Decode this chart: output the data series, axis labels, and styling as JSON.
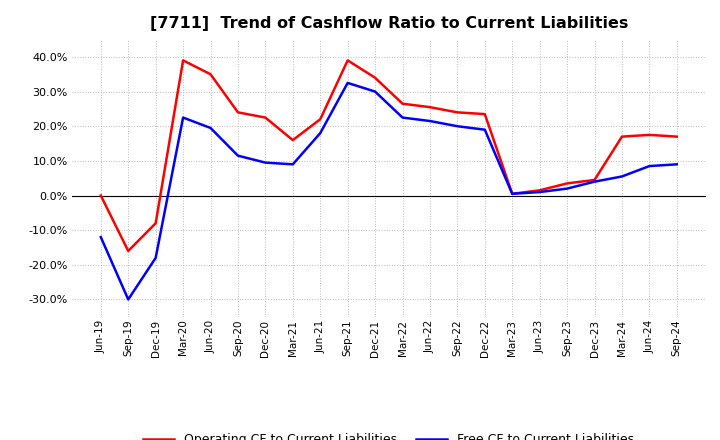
{
  "title": "[7711]  Trend of Cashflow Ratio to Current Liabilities",
  "x_labels": [
    "Jun-19",
    "Sep-19",
    "Dec-19",
    "Mar-20",
    "Jun-20",
    "Sep-20",
    "Dec-20",
    "Mar-21",
    "Jun-21",
    "Sep-21",
    "Dec-21",
    "Mar-22",
    "Jun-22",
    "Sep-22",
    "Dec-22",
    "Mar-23",
    "Jun-23",
    "Sep-23",
    "Dec-23",
    "Mar-24",
    "Jun-24",
    "Sep-24"
  ],
  "operating_cf": [
    0.0,
    -16.0,
    -8.0,
    39.0,
    35.0,
    24.0,
    22.5,
    16.0,
    22.0,
    39.0,
    34.0,
    26.5,
    25.5,
    24.0,
    23.5,
    0.5,
    1.5,
    3.5,
    4.5,
    17.0,
    17.5,
    17.0
  ],
  "free_cf": [
    -12.0,
    -30.0,
    -18.0,
    22.5,
    19.5,
    11.5,
    9.5,
    9.0,
    18.0,
    32.5,
    30.0,
    22.5,
    21.5,
    20.0,
    19.0,
    0.5,
    1.0,
    2.0,
    4.0,
    5.5,
    8.5,
    9.0
  ],
  "operating_color": "#FF0000",
  "free_color": "#0000FF",
  "background_color": "#FFFFFF",
  "plot_bg_color": "#FFFFFF",
  "grid_color": "#AAAAAA",
  "ylim": [
    -35,
    45
  ],
  "yticks": [
    -30,
    -20,
    -10,
    0,
    10,
    20,
    30,
    40
  ],
  "legend_labels": [
    "Operating CF to Current Liabilities",
    "Free CF to Current Liabilities"
  ]
}
